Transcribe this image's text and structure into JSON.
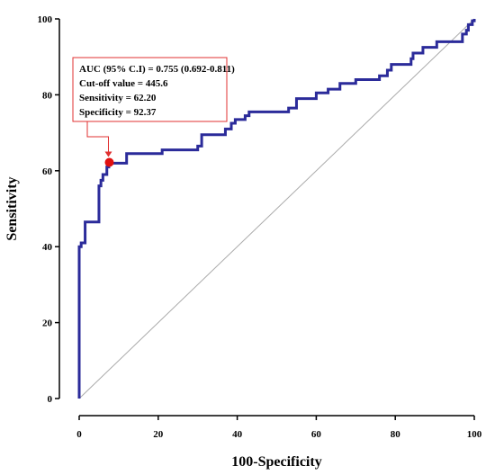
{
  "chart_data": {
    "type": "line",
    "xlabel": "100-Specificity",
    "ylabel": "Sensitivity",
    "xlim": [
      0,
      100
    ],
    "ylim": [
      0,
      100
    ],
    "x_ticks": [
      0,
      20,
      40,
      60,
      80,
      100
    ],
    "y_ticks": [
      0,
      20,
      40,
      60,
      80,
      100
    ],
    "grid": false,
    "legend": "none",
    "series": [
      {
        "color": "#2b2b9a",
        "points": [
          [
            0,
            0
          ],
          [
            0,
            40
          ],
          [
            0.5,
            40
          ],
          [
            0.5,
            41
          ],
          [
            1.5,
            41
          ],
          [
            1.5,
            46.5
          ],
          [
            5,
            46.5
          ],
          [
            5,
            56
          ],
          [
            5.5,
            56
          ],
          [
            5.5,
            57.5
          ],
          [
            6,
            57.5
          ],
          [
            6,
            59
          ],
          [
            7,
            59
          ],
          [
            7,
            61
          ],
          [
            7.5,
            61
          ],
          [
            7.5,
            62
          ],
          [
            12,
            62
          ],
          [
            12,
            64.5
          ],
          [
            21,
            64.5
          ],
          [
            21,
            65.5
          ],
          [
            30,
            65.5
          ],
          [
            30,
            66.5
          ],
          [
            31,
            66.5
          ],
          [
            31,
            69.5
          ],
          [
            37,
            69.5
          ],
          [
            37,
            71
          ],
          [
            38.5,
            71
          ],
          [
            38.5,
            72.5
          ],
          [
            39.5,
            72.5
          ],
          [
            39.5,
            73.5
          ],
          [
            42,
            73.5
          ],
          [
            42,
            74.5
          ],
          [
            43,
            74.5
          ],
          [
            43,
            75.5
          ],
          [
            53,
            75.5
          ],
          [
            53,
            76.5
          ],
          [
            55,
            76.5
          ],
          [
            55,
            79
          ],
          [
            60,
            79
          ],
          [
            60,
            80.5
          ],
          [
            63,
            80.5
          ],
          [
            63,
            81.5
          ],
          [
            66,
            81.5
          ],
          [
            66,
            83
          ],
          [
            70,
            83
          ],
          [
            70,
            84
          ],
          [
            76,
            84
          ],
          [
            76,
            85
          ],
          [
            78,
            85
          ],
          [
            78,
            86.5
          ],
          [
            79,
            86.5
          ],
          [
            79,
            88
          ],
          [
            84,
            88
          ],
          [
            84,
            89.5
          ],
          [
            84.5,
            89.5
          ],
          [
            84.5,
            91
          ],
          [
            87,
            91
          ],
          [
            87,
            92.5
          ],
          [
            90.5,
            92.5
          ],
          [
            90.5,
            94
          ],
          [
            97,
            94
          ],
          [
            97,
            96
          ],
          [
            98,
            96
          ],
          [
            98,
            97
          ],
          [
            98.5,
            97
          ],
          [
            98.5,
            98.5
          ],
          [
            99.5,
            98.5
          ],
          [
            99.5,
            99.5
          ],
          [
            100,
            99.5
          ],
          [
            100,
            100
          ]
        ]
      }
    ],
    "reference_line": {
      "points": [
        [
          0,
          0
        ],
        [
          100,
          100
        ]
      ],
      "color": "#aaaaaa"
    },
    "cutoff_point": {
      "x": 7.63,
      "y": 62.2,
      "color": "#e01010"
    },
    "annotation": {
      "lines": [
        "AUC (95% C.I) = 0.755 (0.692-0.811)",
        "Cut-off value = 445.6",
        "Sensitivity = 62.20",
        "Specificity = 92.37"
      ],
      "border_color": "#e03030",
      "arrow_color": "#e03030"
    }
  }
}
